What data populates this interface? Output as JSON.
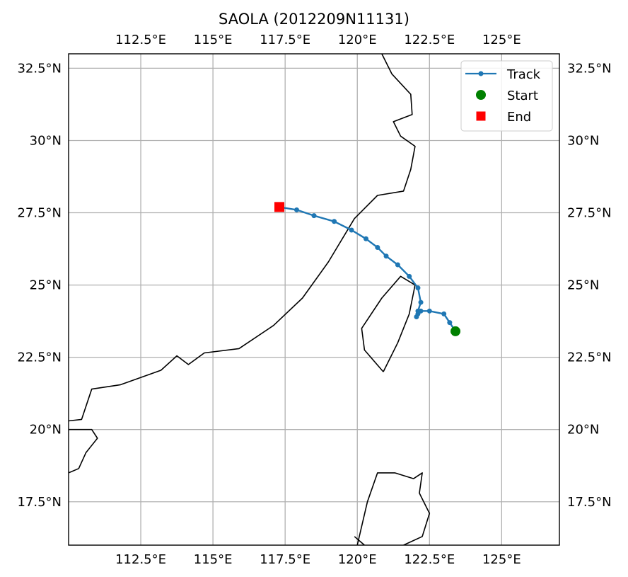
{
  "title": "SAOLA (2012209N11131)",
  "axes": {
    "lon_range": [
      110,
      127
    ],
    "lat_range": [
      16,
      33
    ],
    "lon_ticks": [
      112.5,
      115,
      117.5,
      120,
      122.5,
      125
    ],
    "lon_tick_labels": [
      "112.5°E",
      "115°E",
      "117.5°E",
      "120°E",
      "122.5°E",
      "125°E"
    ],
    "lat_ticks": [
      17.5,
      20,
      22.5,
      25,
      27.5,
      30,
      32.5
    ],
    "lat_tick_labels": [
      "17.5°N",
      "20°N",
      "22.5°N",
      "25°N",
      "27.5°N",
      "30°N",
      "32.5°N"
    ],
    "grid": true
  },
  "legend": {
    "placement": "top-right",
    "entries": [
      {
        "label": "Track",
        "marker": "line-dot",
        "color": "#1f77b4"
      },
      {
        "label": "Start",
        "marker": "circle",
        "color": "#008000"
      },
      {
        "label": "End",
        "marker": "square",
        "color": "#ff0000"
      }
    ]
  },
  "colors": {
    "track": "#1f77b4",
    "start": "#008000",
    "end": "#ff0000",
    "coastline": "#000000",
    "grid": "#b0b0b0"
  },
  "chart_data": {
    "type": "scatter",
    "title": "SAOLA (2012209N11131)",
    "xlabel": "",
    "ylabel": "",
    "xlim": [
      110,
      127
    ],
    "ylim": [
      16,
      33
    ],
    "series": [
      {
        "name": "Track",
        "points": [
          [
            123.4,
            23.4
          ],
          [
            123.2,
            23.7
          ],
          [
            123.0,
            24.0
          ],
          [
            122.5,
            24.1
          ],
          [
            122.2,
            24.1
          ],
          [
            122.1,
            24.0
          ],
          [
            122.05,
            23.9
          ],
          [
            122.1,
            24.1
          ],
          [
            122.2,
            24.4
          ],
          [
            122.1,
            24.9
          ],
          [
            121.8,
            25.3
          ],
          [
            121.4,
            25.7
          ],
          [
            121.0,
            26.0
          ],
          [
            120.7,
            26.3
          ],
          [
            120.3,
            26.6
          ],
          [
            119.8,
            26.9
          ],
          [
            119.2,
            27.2
          ],
          [
            118.5,
            27.4
          ],
          [
            117.9,
            27.6
          ],
          [
            117.3,
            27.7
          ]
        ]
      },
      {
        "name": "Start",
        "points": [
          [
            123.4,
            23.4
          ]
        ]
      },
      {
        "name": "End",
        "points": [
          [
            117.3,
            27.7
          ]
        ]
      }
    ],
    "coastlines": [
      [
        [
          110,
          20.3
        ],
        [
          110.45,
          20.35
        ],
        [
          110.8,
          21.4
        ],
        [
          111.8,
          21.55
        ],
        [
          113.2,
          22.05
        ],
        [
          113.75,
          22.55
        ],
        [
          114.15,
          22.25
        ],
        [
          114.7,
          22.65
        ],
        [
          115.9,
          22.8
        ],
        [
          117.1,
          23.6
        ],
        [
          118.1,
          24.55
        ],
        [
          119.0,
          25.8
        ],
        [
          119.9,
          27.3
        ],
        [
          120.7,
          28.1
        ],
        [
          121.6,
          28.25
        ],
        [
          121.85,
          29.0
        ],
        [
          122.0,
          29.8
        ],
        [
          121.5,
          30.15
        ],
        [
          121.25,
          30.65
        ],
        [
          121.9,
          30.9
        ],
        [
          121.85,
          31.6
        ],
        [
          121.2,
          32.3
        ],
        [
          120.85,
          33.0
        ]
      ],
      [
        [
          120.9,
          22.0
        ],
        [
          121.4,
          23.0
        ],
        [
          121.8,
          24.0
        ],
        [
          122.0,
          25.0
        ],
        [
          121.5,
          25.3
        ],
        [
          120.85,
          24.55
        ],
        [
          120.15,
          23.5
        ],
        [
          120.25,
          22.75
        ],
        [
          120.9,
          22.0
        ]
      ],
      [
        [
          110,
          20.0
        ],
        [
          110.8,
          20.0
        ],
        [
          111.0,
          19.7
        ],
        [
          110.6,
          19.2
        ],
        [
          110.35,
          18.65
        ],
        [
          110,
          18.5
        ]
      ],
      [
        [
          120.0,
          16.0
        ],
        [
          120.35,
          17.5
        ],
        [
          120.7,
          18.5
        ],
        [
          121.3,
          18.5
        ],
        [
          121.95,
          18.3
        ],
        [
          122.25,
          18.5
        ],
        [
          122.15,
          17.8
        ],
        [
          122.5,
          17.1
        ],
        [
          122.25,
          16.3
        ],
        [
          121.6,
          16.0
        ]
      ],
      [
        [
          119.9,
          16.3
        ],
        [
          120.25,
          16.0
        ]
      ]
    ]
  }
}
